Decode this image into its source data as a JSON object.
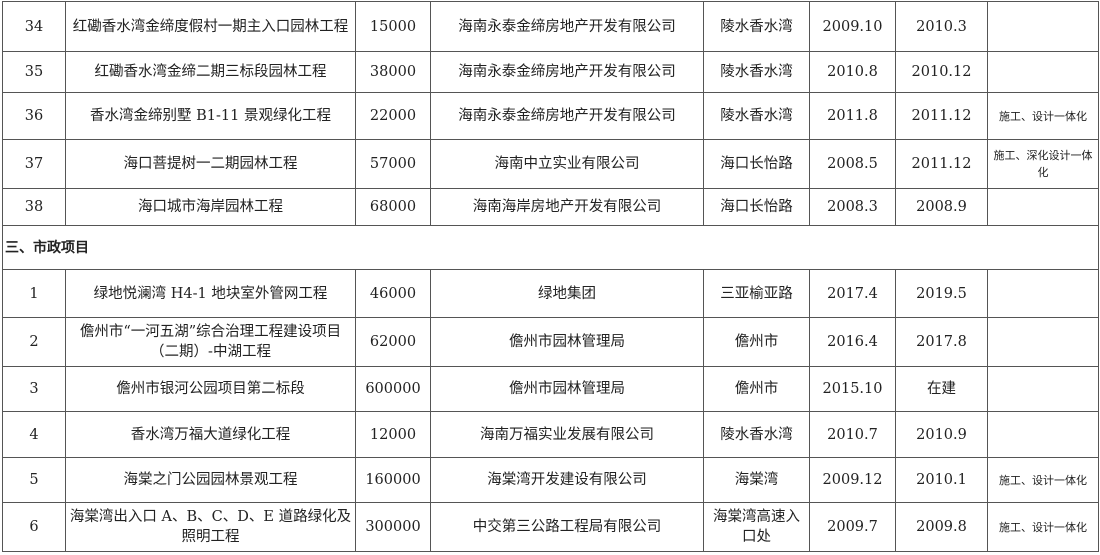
{
  "rows_top": [
    {
      "no": "34",
      "name": "红磡香水湾金缔度假村一期主入口园林工程",
      "amount": "15000",
      "client": "海南永泰金缔房地产开发有限公司",
      "location": "陵水香水湾",
      "start": "2009.10",
      "end": "2010.3",
      "note": ""
    },
    {
      "no": "35",
      "name": "红磡香水湾金缔二期三标段园林工程",
      "amount": "38000",
      "client": "海南永泰金缔房地产开发有限公司",
      "location": "陵水香水湾",
      "start": "2010.8",
      "end": "2010.12",
      "note": ""
    },
    {
      "no": "36",
      "name": "香水湾金缔别墅 B1-11 景观绿化工程",
      "amount": "22000",
      "client": "海南永泰金缔房地产开发有限公司",
      "location": "陵水香水湾",
      "start": "2011.8",
      "end": "2011.12",
      "note": "施工、设计一体化"
    },
    {
      "no": "37",
      "name": "海口菩提树一二期园林工程",
      "amount": "57000",
      "client": "海南中立实业有限公司",
      "location": "海口长怡路",
      "start": "2008.5",
      "end": "2011.12",
      "note": "施工、深化设计一体化"
    },
    {
      "no": "38",
      "name": "海口城市海岸园林工程",
      "amount": "68000",
      "client": "海南海岸房地产开发有限公司",
      "location": "海口长怡路",
      "start": "2008.3",
      "end": "2008.9",
      "note": ""
    }
  ],
  "section_title": "三、市政项目",
  "rows_bottom": [
    {
      "no": "1",
      "name": "绿地悦澜湾 H4-1 地块室外管网工程",
      "amount": "46000",
      "client": "绿地集团",
      "location": "三亚榆亚路",
      "start": "2017.4",
      "end": "2019.5",
      "note": ""
    },
    {
      "no": "2",
      "name": "儋州市“一河五湖”综合治理工程建设项目（二期）-中湖工程",
      "amount": "62000",
      "client": "儋州市园林管理局",
      "location": "儋州市",
      "start": "2016.4",
      "end": "2017.8",
      "note": ""
    },
    {
      "no": "3",
      "name": "儋州市银河公园项目第二标段",
      "amount": "600000",
      "client": "儋州市园林管理局",
      "location": "儋州市",
      "start": "2015.10",
      "end": "在建",
      "note": ""
    },
    {
      "no": "4",
      "name": "香水湾万福大道绿化工程",
      "amount": "12000",
      "client": "海南万福实业发展有限公司",
      "location": "陵水香水湾",
      "start": "2010.7",
      "end": "2010.9",
      "note": ""
    },
    {
      "no": "5",
      "name": "海棠之门公园园林景观工程",
      "amount": "160000",
      "client": "海棠湾开发建设有限公司",
      "location": "海棠湾",
      "start": "2009.12",
      "end": "2010.1",
      "note": "施工、设计一体化"
    },
    {
      "no": "6",
      "name": "海棠湾出入口 A、B、C、D、E 道路绿化及照明工程",
      "amount": "300000",
      "client": "中交第三公路工程局有限公司",
      "location": "海棠湾高速入口处",
      "start": "2009.7",
      "end": "2009.8",
      "note": "施工、设计一体化"
    }
  ]
}
